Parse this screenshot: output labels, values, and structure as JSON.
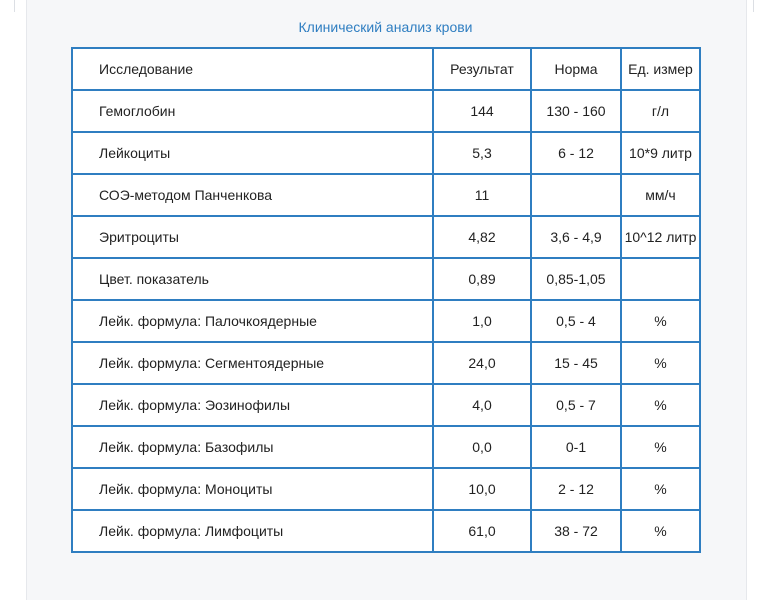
{
  "caption": "Клинический анализ крови",
  "columns": {
    "name": "Исследование",
    "result": "Результат",
    "norm": "Норма",
    "unit": "Ед. измер"
  },
  "rows": [
    {
      "name": "Гемоглобин",
      "result": "144",
      "norm": "130 - 160",
      "unit": "г/л"
    },
    {
      "name": "Лейкоциты",
      "result": "5,3",
      "norm": "6 - 12",
      "unit": "10*9 литр"
    },
    {
      "name": "СОЭ-методом Панченкова",
      "result": "11",
      "norm": "",
      "unit": "мм/ч"
    },
    {
      "name": "Эритроциты",
      "result": "4,82",
      "norm": "3,6 - 4,9",
      "unit": "10^12 литр"
    },
    {
      "name": "Цвет. показатель",
      "result": "0,89",
      "norm": "0,85-1,05",
      "unit": ""
    },
    {
      "name": "Лейк. формула: Палочкоядерные",
      "result": "1,0",
      "norm": "0,5 - 4",
      "unit": "%"
    },
    {
      "name": "Лейк. формула: Сегментоядерные",
      "result": "24,0",
      "norm": "15 - 45",
      "unit": "%"
    },
    {
      "name": "Лейк. формула: Эозинофилы",
      "result": "4,0",
      "norm": "0,5 - 7",
      "unit": "%"
    },
    {
      "name": "Лейк. формула: Базофилы",
      "result": "0,0",
      "norm": "0-1",
      "unit": "%"
    },
    {
      "name": "Лейк. формула: Моноциты",
      "result": "10,0",
      "norm": "2 - 12",
      "unit": "%"
    },
    {
      "name": "Лейк. формула: Лимфоциты",
      "result": "61,0",
      "norm": "38 - 72",
      "unit": "%"
    }
  ],
  "colors": {
    "accent": "#2f7ec1",
    "panel_background": "#f6f7f9",
    "text": "#222222"
  }
}
